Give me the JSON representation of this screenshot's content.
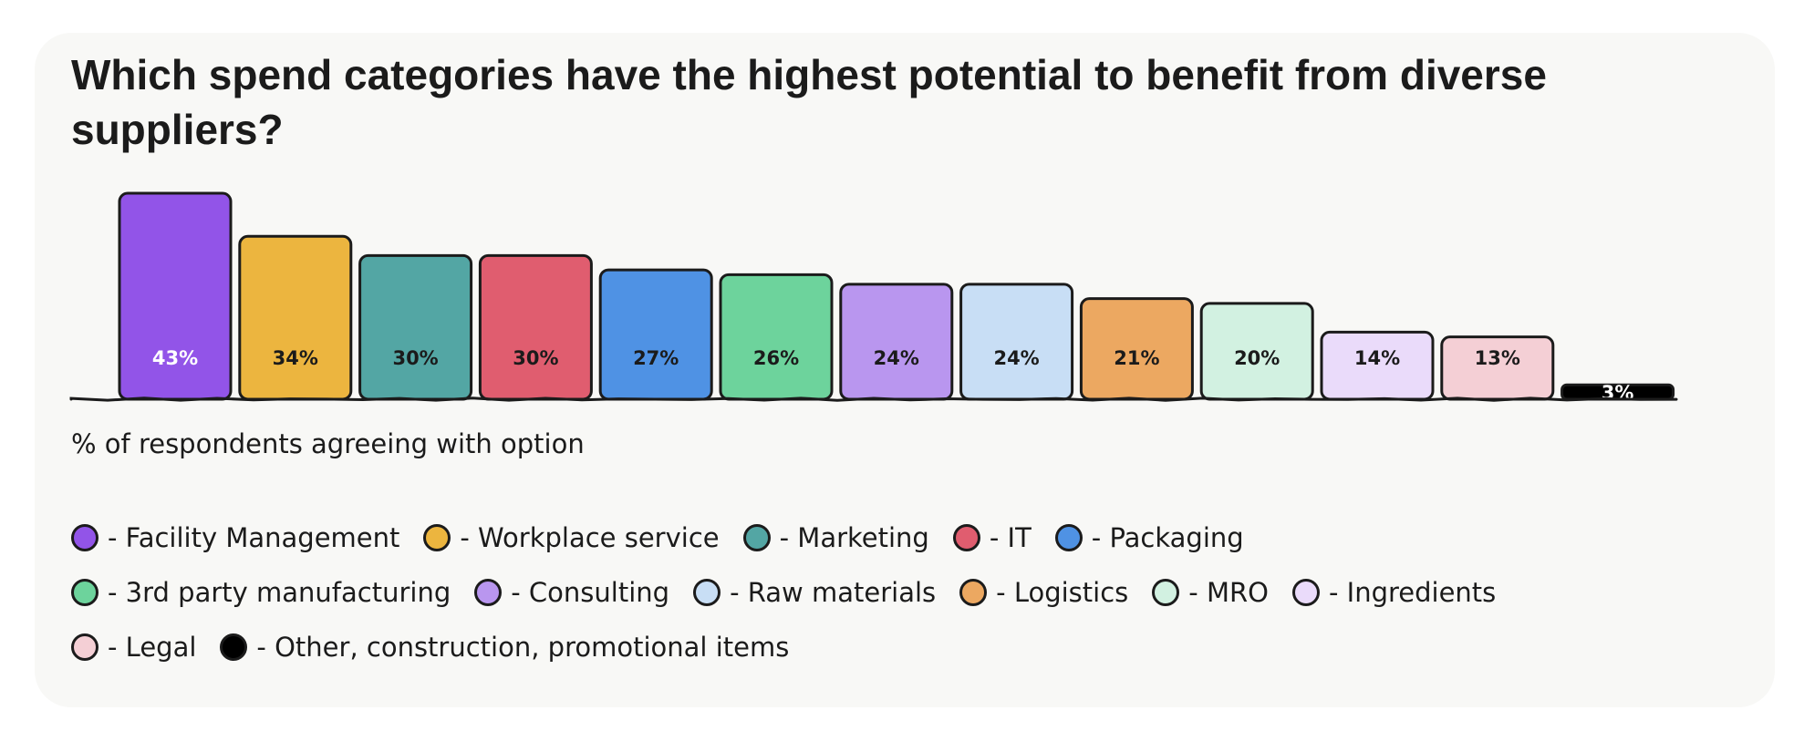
{
  "title": "Which spend categories have the highest potential to benefit from diverse suppliers?",
  "caption": "% of respondents agreeing with option",
  "chart_data": {
    "type": "bar",
    "title": "Which spend categories have the highest potential to benefit from diverse suppliers?",
    "xlabel": "",
    "ylabel": "% of respondents agreeing with option",
    "ylim": [
      0,
      43
    ],
    "categories": [
      "Facility Management",
      "Workplace service",
      "Marketing",
      "IT",
      "Packaging",
      "3rd party manufacturing",
      "Consulting",
      "Raw materials",
      "Logistics",
      "MRO",
      "Ingredients",
      "Legal",
      "Other, construction, promotional items"
    ],
    "values": [
      43,
      34,
      30,
      30,
      27,
      26,
      24,
      24,
      21,
      20,
      14,
      13,
      3
    ],
    "value_labels": [
      "43%",
      "34%",
      "30%",
      "30%",
      "27%",
      "26%",
      "24%",
      "24%",
      "21%",
      "20%",
      "14%",
      "13%",
      "3%"
    ],
    "colors": [
      "#9254e8",
      "#ecb53f",
      "#53a6a4",
      "#e05d6f",
      "#4f92e4",
      "#6dd39c",
      "#b996ef",
      "#c8def5",
      "#eca861",
      "#d2f1e1",
      "#eadbfa",
      "#f4cfd5",
      "#000000"
    ],
    "label_colors": [
      "#ffffff",
      "#1b1b1b",
      "#1b1b1b",
      "#1b1b1b",
      "#1b1b1b",
      "#1b1b1b",
      "#1b1b1b",
      "#1b1b1b",
      "#1b1b1b",
      "#1b1b1b",
      "#1b1b1b",
      "#1b1b1b",
      "#ffffff"
    ],
    "grid": false,
    "legend_position": "bottom"
  },
  "legend": {
    "rows": [
      [
        {
          "label": "- Facility Management",
          "color": "#9254e8"
        },
        {
          "label": "- Workplace service",
          "color": "#ecb53f"
        },
        {
          "label": "- Marketing",
          "color": "#53a6a4"
        },
        {
          "label": "- IT",
          "color": "#e05d6f"
        },
        {
          "label": "- Packaging",
          "color": "#4f92e4"
        }
      ],
      [
        {
          "label": "- 3rd party manufacturing",
          "color": "#6dd39c"
        },
        {
          "label": "- Consulting",
          "color": "#b996ef"
        },
        {
          "label": "- Raw materials",
          "color": "#c8def5"
        },
        {
          "label": "- Logistics",
          "color": "#eca861"
        },
        {
          "label": "- MRO",
          "color": "#d2f1e1"
        },
        {
          "label": "- Ingredients",
          "color": "#eadbfa"
        }
      ],
      [
        {
          "label": "- Legal",
          "color": "#f4cfd5"
        },
        {
          "label": "- Other, construction, promotional items",
          "color": "#000000"
        }
      ]
    ]
  }
}
